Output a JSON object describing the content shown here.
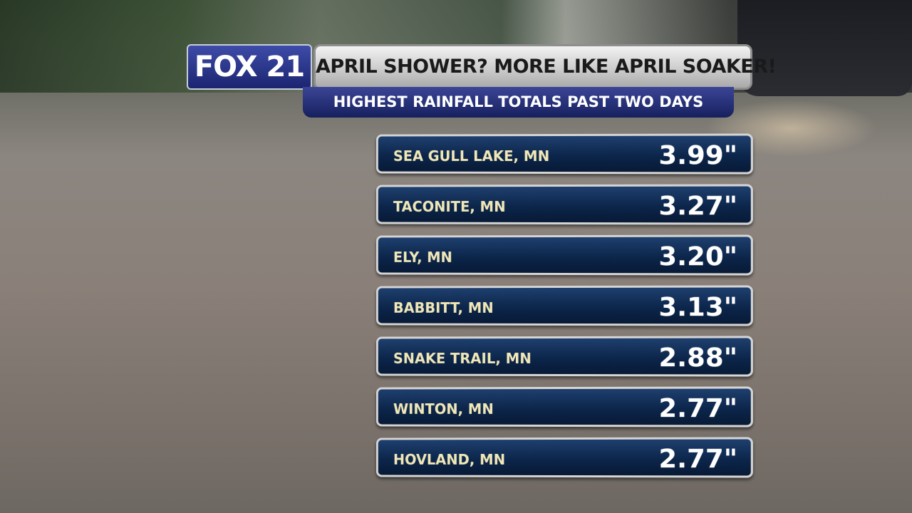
{
  "header": {
    "logo": "FOX 21",
    "title": "APRIL SHOWER? MORE LIKE APRIL SOAKER!",
    "subtitle": "HIGHEST RAINFALL TOTALS PAST TWO DAYS"
  },
  "rows": [
    {
      "location": "SEA GULL LAKE, MN",
      "total": "3.99\""
    },
    {
      "location": "TACONITE, MN",
      "total": "3.27\""
    },
    {
      "location": "ELY, MN",
      "total": "3.20\""
    },
    {
      "location": "BABBITT, MN",
      "total": "3.13\""
    },
    {
      "location": "SNAKE TRAIL, MN",
      "total": "2.88\""
    },
    {
      "location": "WINTON, MN",
      "total": "2.77\""
    },
    {
      "location": "HOVLAND, MN",
      "total": "2.77\""
    }
  ]
}
